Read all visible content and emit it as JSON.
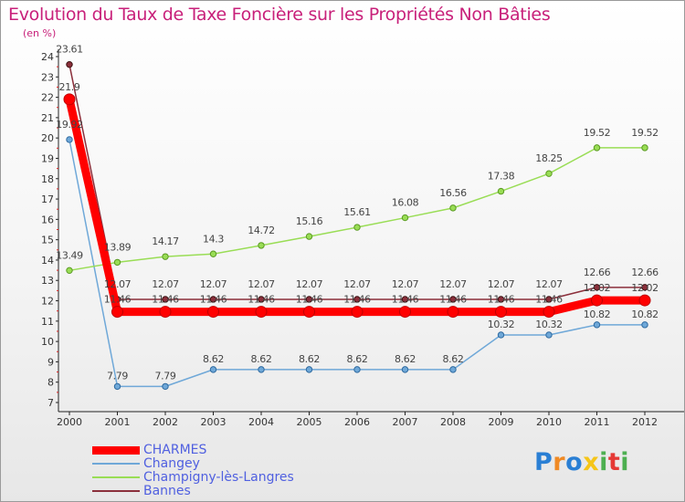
{
  "chart_data": {
    "type": "line",
    "title": "Evolution du Taux de Taxe Foncière sur les Propriétés Non Bâties",
    "unit_label": "(en %)",
    "x": [
      "2000",
      "2001",
      "2002",
      "2003",
      "2004",
      "2005",
      "2006",
      "2007",
      "2008",
      "2009",
      "2010",
      "2011",
      "2012"
    ],
    "ylim": [
      7,
      24
    ],
    "yticks": [
      7,
      8,
      9,
      10,
      11,
      12,
      13,
      14,
      15,
      16,
      17,
      18,
      19,
      20,
      21,
      22,
      23,
      24
    ],
    "grid": false,
    "legend_position": "bottom-left",
    "series": [
      {
        "name": "CHARMES",
        "color": "#ff0000",
        "values": [
          21.9,
          11.46,
          11.46,
          11.46,
          11.46,
          11.46,
          11.46,
          11.46,
          11.46,
          11.46,
          11.46,
          12.02,
          12.02
        ],
        "labels": [
          "21.9",
          "11.46",
          "11.46",
          "11.46",
          "11.46",
          "11.46",
          "11.46",
          "11.46",
          "11.46",
          "11.46",
          "11.46",
          "12.02",
          "12.02"
        ]
      },
      {
        "name": "Changey",
        "color": "#6fa8d8",
        "values": [
          19.92,
          7.79,
          7.79,
          8.62,
          8.62,
          8.62,
          8.62,
          8.62,
          8.62,
          10.32,
          10.32,
          10.82,
          10.82
        ],
        "labels": [
          "19.92",
          "7.79",
          "7.79",
          "8.62",
          "8.62",
          "8.62",
          "8.62",
          "8.62",
          "8.62",
          "10.32",
          "10.32",
          "10.82",
          "10.82"
        ]
      },
      {
        "name": "Champigny-lès-Langres",
        "color": "#99dd55",
        "values": [
          13.49,
          13.89,
          14.17,
          14.3,
          14.72,
          15.16,
          15.61,
          16.08,
          16.56,
          17.38,
          18.25,
          19.52,
          19.52
        ],
        "labels": [
          "13.49",
          "13.89",
          "14.17",
          "14.3",
          "14.72",
          "15.16",
          "15.61",
          "16.08",
          "16.56",
          "17.38",
          "18.25",
          "19.52",
          "19.52"
        ]
      },
      {
        "name": "Bannes",
        "color": "#8b2f3b",
        "values": [
          23.61,
          12.07,
          12.07,
          12.07,
          12.07,
          12.07,
          12.07,
          12.07,
          12.07,
          12.07,
          12.07,
          12.66,
          12.66
        ],
        "labels": [
          "23.61",
          "12.07",
          "12.07",
          "12.07",
          "12.07",
          "12.07",
          "12.07",
          "12.07",
          "12.07",
          "12.07",
          "12.07",
          "12.66",
          "12.66"
        ]
      }
    ]
  },
  "logo": {
    "letters": [
      "P",
      "r",
      "o",
      "x",
      "i",
      "t",
      "i"
    ],
    "colors": [
      "#2a7fd4",
      "#f08a24",
      "#2a7fd4",
      "#f5c518",
      "#4caf50",
      "#e53935",
      "#4caf50"
    ]
  }
}
